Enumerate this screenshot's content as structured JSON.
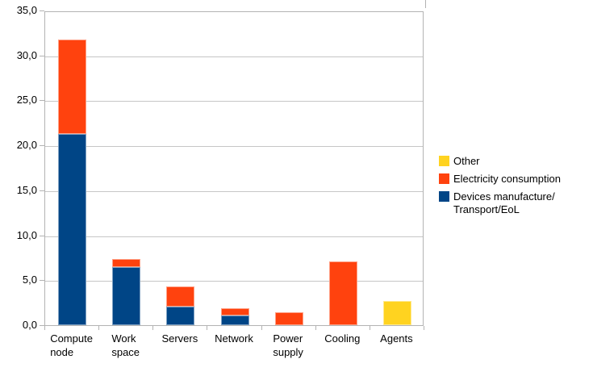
{
  "chart_data": {
    "type": "bar",
    "stacked": true,
    "title": "",
    "xlabel": "",
    "ylabel": "",
    "ylim": [
      0,
      35
    ],
    "ytick_step": 5,
    "ytick_labels": [
      "0,0",
      "5,0",
      "10,0",
      "15,0",
      "20,0",
      "25,0",
      "30,0",
      "35,0"
    ],
    "grid": "horizontal",
    "categories": [
      "Compute node",
      "Work space",
      "Servers",
      "Network",
      "Power supply",
      "Cooling",
      "Agents"
    ],
    "category_display_labels": [
      "Compute\nnode",
      "Work\nspace",
      "Servers",
      "Network",
      "Power\nsupply",
      "Cooling",
      "Agents"
    ],
    "series": [
      {
        "name": "Devices manufacture/Transport/EoL",
        "color": "#004586",
        "values": [
          21.3,
          6.5,
          2.1,
          1.1,
          0,
          0,
          0
        ]
      },
      {
        "name": "Electricity consumption",
        "color": "#FF420E",
        "values": [
          10.5,
          0.9,
          2.2,
          0.8,
          1.4,
          7.1,
          0
        ]
      },
      {
        "name": "Other",
        "color": "#FFD320",
        "values": [
          0,
          0,
          0,
          0,
          0,
          0,
          2.7
        ]
      }
    ],
    "legend": {
      "position": "right",
      "entries_top_to_bottom": [
        {
          "label": "Other",
          "display_label": "Other",
          "color": "#FFD320"
        },
        {
          "label": "Electricity consumption",
          "display_label": "Electricity consumption",
          "color": "#FF420E"
        },
        {
          "label": "Devices manufacture/Transport/EoL",
          "display_label": "Devices manufacture/\nTransport/EoL",
          "color": "#004586"
        }
      ]
    }
  },
  "colors": {
    "background": "#ffffff",
    "gridline": "#c6c6c6",
    "axis_frame": "#b3b3b3",
    "text": "#000000",
    "series_blue": "#004586",
    "series_orange": "#FF420E",
    "series_yellow": "#FFD320"
  }
}
